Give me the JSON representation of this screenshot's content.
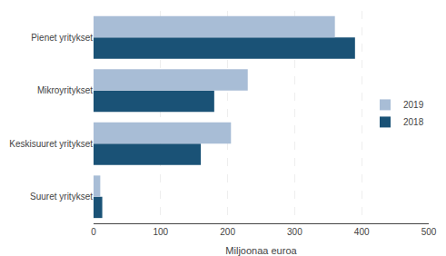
{
  "chart_data": {
    "type": "bar",
    "orientation": "horizontal",
    "categories": [
      "Suuret yritykset",
      "Keskisuuret yritykset",
      "Mikroyritykset",
      "Pienet yritykset"
    ],
    "series": [
      {
        "name": "2019",
        "color": "#a8bdd6",
        "values": [
          10,
          205,
          230,
          360
        ]
      },
      {
        "name": "2018",
        "color": "#1a5276",
        "values": [
          13,
          160,
          180,
          390
        ]
      }
    ],
    "xlabel": "Miljoonaa euroa",
    "xlim": [
      0,
      500
    ],
    "xticks": [
      0,
      100,
      200,
      300,
      400,
      500
    ],
    "grid": true,
    "legend": "right"
  }
}
